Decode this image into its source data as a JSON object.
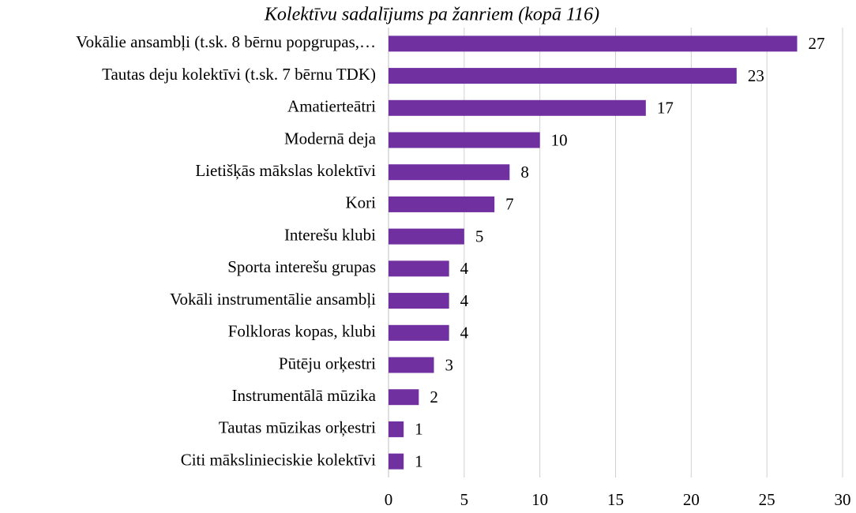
{
  "chart_data": {
    "type": "bar",
    "orientation": "horizontal",
    "title": "Kolektīvu sadalījums pa žanriem (kopā 116)",
    "categories": [
      "Vokālie ansambļi (t.sk. 8 bērnu popgrupas,…",
      "Tautas deju kolektīvi (t.sk. 7 bērnu TDK)",
      "Amatierteātri",
      "Modernā deja",
      "Lietišķās mākslas kolektīvi",
      "Kori",
      "Interešu klubi",
      "Sporta interešu grupas",
      "Vokāli instrumentālie ansambļi",
      "Folkloras kopas, klubi",
      "Pūtēju orķestri",
      "Instrumentālā mūzika",
      "Tautas mūzikas orķestri",
      "Citi mākslinieciskie kolektīvi"
    ],
    "values": [
      27,
      23,
      17,
      10,
      8,
      7,
      5,
      4,
      4,
      4,
      3,
      2,
      1,
      1
    ],
    "color": "#7030a0",
    "xlim": [
      0,
      30
    ],
    "xticks": [
      0,
      5,
      10,
      15,
      20,
      25,
      30
    ],
    "grid": true
  }
}
